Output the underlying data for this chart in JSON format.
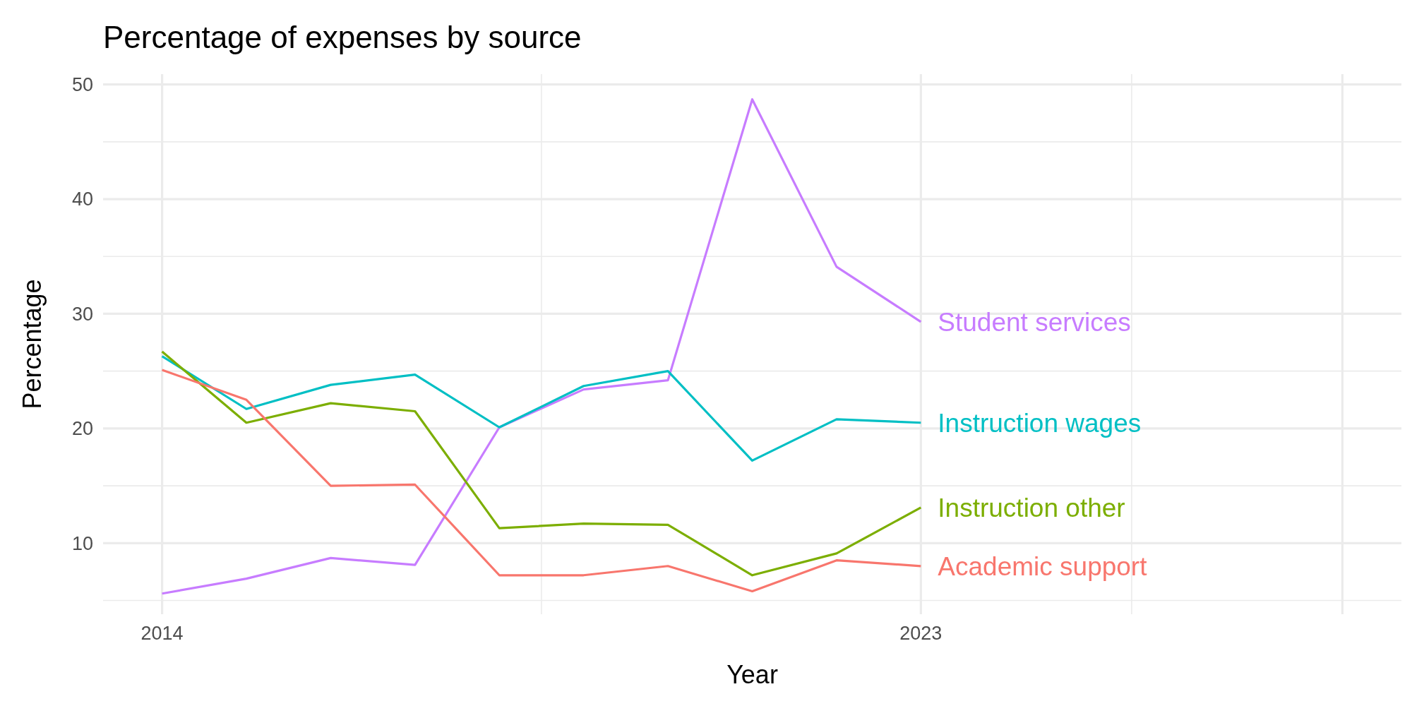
{
  "chart_data": {
    "type": "line",
    "title": "Percentage of expenses by source",
    "xlabel": "Year",
    "ylabel": "Percentage",
    "x": [
      2014,
      2015,
      2016,
      2017,
      2018,
      2019,
      2020,
      2021,
      2022,
      2023
    ],
    "series": [
      {
        "name": "Student services",
        "color": "#c77cff",
        "values": [
          5.6,
          6.9,
          8.7,
          8.1,
          20.1,
          23.4,
          24.2,
          48.7,
          34.1,
          29.3
        ]
      },
      {
        "name": "Instruction wages",
        "color": "#00bfc4",
        "values": [
          26.3,
          21.7,
          23.8,
          24.7,
          20.1,
          23.7,
          25.0,
          17.2,
          20.8,
          20.5
        ]
      },
      {
        "name": "Instruction other",
        "color": "#7cae00",
        "values": [
          26.7,
          20.5,
          22.2,
          21.5,
          11.3,
          11.7,
          11.6,
          7.2,
          9.1,
          13.1
        ]
      },
      {
        "name": "Academic support",
        "color": "#f8766d",
        "values": [
          25.1,
          22.5,
          15.0,
          15.1,
          7.2,
          7.2,
          8.0,
          5.8,
          8.5,
          8.0
        ]
      }
    ],
    "xlim": [
      2013.3,
      2028.7
    ],
    "xticks": [
      2014,
      {
        "value": 2018.5,
        "label": null
      },
      2023,
      {
        "value": 2025.5,
        "label": null
      },
      {
        "value": 2028,
        "label": null
      }
    ],
    "ylim": [
      3.8,
      50.9
    ],
    "yticks": [
      {
        "value": 5,
        "label": null
      },
      10,
      {
        "value": 15,
        "label": null
      },
      20,
      {
        "value": 25,
        "label": null
      },
      30,
      {
        "value": 35,
        "label": null
      },
      40,
      {
        "value": 45,
        "label": null
      },
      50
    ],
    "grid": true,
    "line_style": "solid",
    "marker": "none"
  }
}
